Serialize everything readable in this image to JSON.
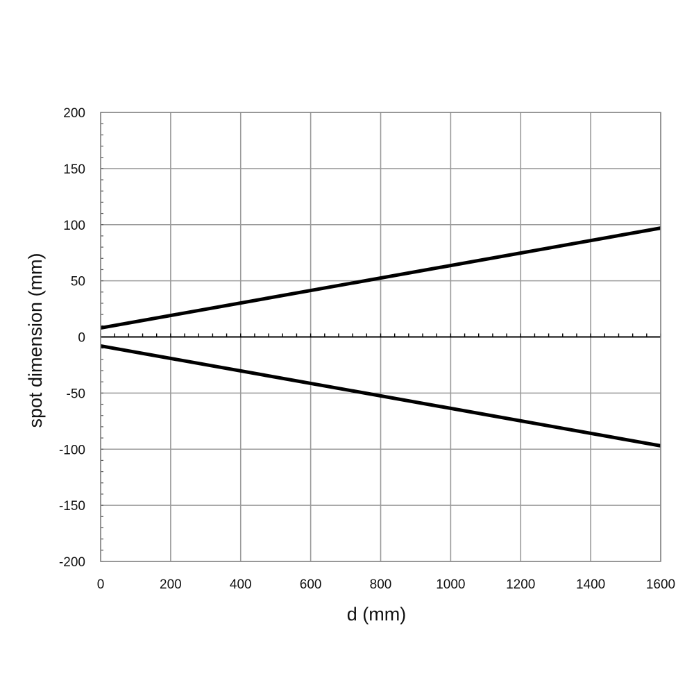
{
  "chart_data": {
    "type": "line",
    "xlabel": "d (mm)",
    "ylabel": "spot dimension (mm)",
    "xlim": [
      0,
      1600
    ],
    "ylim": [
      -200,
      200
    ],
    "xticks": [
      "0",
      "200",
      "400",
      "600",
      "800",
      "1000",
      "1200",
      "1400",
      "1600"
    ],
    "yticks": [
      "200",
      "150",
      "100",
      "50",
      "0",
      "-50",
      "-100",
      "-150",
      "-200"
    ],
    "grid": true,
    "legend": "none",
    "series": [
      {
        "x": [
          0,
          1600
        ],
        "y": [
          8,
          97
        ],
        "color": "#000000"
      },
      {
        "x": [
          0,
          1600
        ],
        "y": [
          -8,
          -97
        ],
        "color": "#000000"
      }
    ]
  }
}
